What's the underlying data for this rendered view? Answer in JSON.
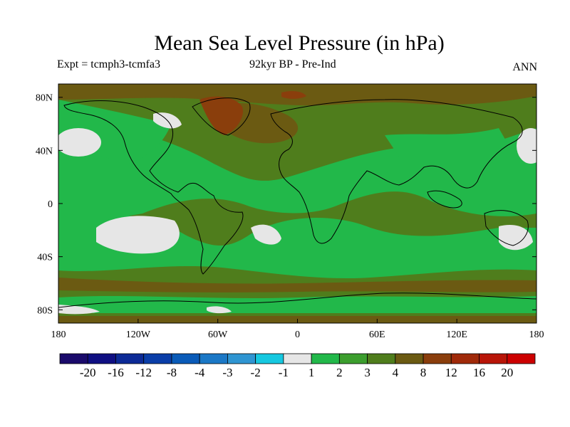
{
  "title": "Mean Sea Level Pressure (in hPa)",
  "subtitle_left": "Expt = tcmph3-tcmfa3",
  "subtitle_center": "92kyr BP - Pre-Ind",
  "subtitle_right": "ANN",
  "lat_labels": [
    "80N",
    "40N",
    "0",
    "40S",
    "80S"
  ],
  "lat_values": [
    80,
    40,
    0,
    -40,
    -80
  ],
  "lon_labels": [
    "180",
    "120W",
    "60W",
    "0",
    "60E",
    "120E",
    "180"
  ],
  "lon_values": [
    -180,
    -120,
    -60,
    0,
    60,
    120,
    180
  ],
  "colorbar": {
    "colors": [
      "#1a0a6b",
      "#0f0f82",
      "#0c2a96",
      "#0a3ea8",
      "#0a5bb8",
      "#1b78c6",
      "#2f95d2",
      "#16c8e0",
      "#e6e6e6",
      "#22b84a",
      "#3c9e2e",
      "#4f7d1c",
      "#6b5a12",
      "#8a3e0c",
      "#a02a0a",
      "#b81508",
      "#cc0000"
    ],
    "labels": [
      "-20",
      "-16",
      "-12",
      "-8",
      "-4",
      "-3",
      "-2",
      "-1",
      "1",
      "2",
      "3",
      "4",
      "8",
      "12",
      "16",
      "20"
    ]
  },
  "map_colors": {
    "near_zero": "#e6e6e6",
    "one_to_two": "#22b84a",
    "two_to_three": "#3c9e2e",
    "three_to_four": "#4f7d1c",
    "four_to_eight": "#6b5a12",
    "eight_to_twelve": "#8a3e0c"
  }
}
